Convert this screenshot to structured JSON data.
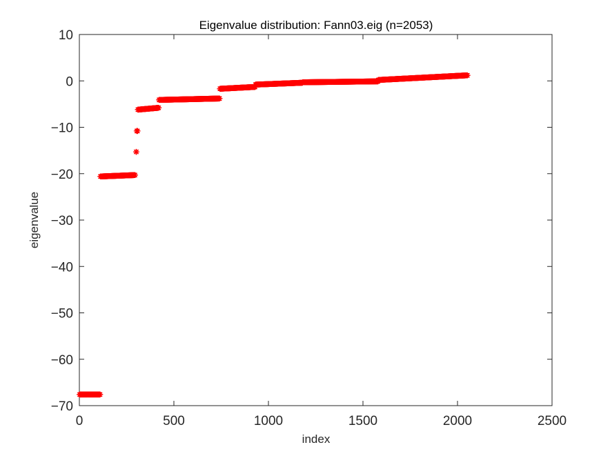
{
  "chart_data": {
    "type": "scatter",
    "title": "Eigenvalue distribution: Fann03.eig (n=2053)",
    "xlabel": "index",
    "ylabel": "eigenvalue",
    "xlim": [
      0,
      2500
    ],
    "ylim": [
      -70,
      10
    ],
    "xticks": [
      "0",
      "500",
      "1000",
      "1500",
      "2000",
      "2500"
    ],
    "yticks": [
      "10",
      "0",
      "−10",
      "−20",
      "−30",
      "−40",
      "−50",
      "−60",
      "−70"
    ],
    "marker": "asterisk",
    "grid": false,
    "legend": "none",
    "color": "#ff0000",
    "n": 2053,
    "segments": [
      {
        "x_start": 1,
        "x_end": 110,
        "y_start": -67.6,
        "y_end": -67.6
      },
      {
        "x_start": 111,
        "x_end": 295,
        "y_start": -20.6,
        "y_end": -20.3
      },
      {
        "x_start": 300,
        "x_end": 302,
        "y_start": -15.3,
        "y_end": -15.3
      },
      {
        "x_start": 303,
        "x_end": 308,
        "y_start": -10.8,
        "y_end": -10.8
      },
      {
        "x_start": 309,
        "x_end": 420,
        "y_start": -6.2,
        "y_end": -5.8
      },
      {
        "x_start": 421,
        "x_end": 742,
        "y_start": -4.1,
        "y_end": -3.8
      },
      {
        "x_start": 743,
        "x_end": 930,
        "y_start": -1.7,
        "y_end": -1.3
      },
      {
        "x_start": 931,
        "x_end": 1180,
        "y_start": -0.8,
        "y_end": -0.4
      },
      {
        "x_start": 1181,
        "x_end": 1580,
        "y_start": -0.3,
        "y_end": -0.1
      },
      {
        "x_start": 1581,
        "x_end": 2053,
        "y_start": 0.2,
        "y_end": 1.2
      }
    ]
  }
}
